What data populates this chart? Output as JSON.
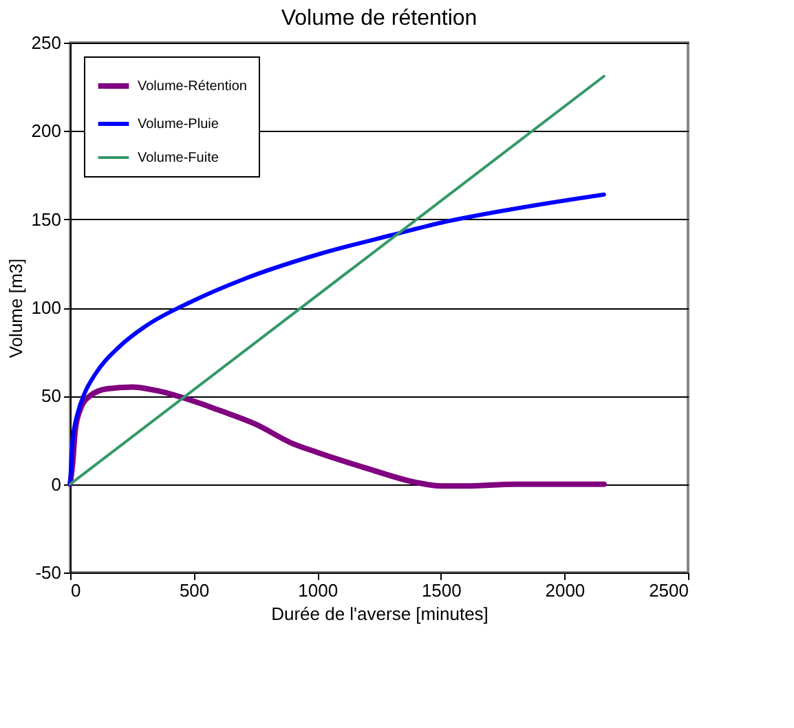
{
  "chart_data": {
    "type": "line",
    "title": "Volume de rétention",
    "xlabel": "Durée de l'averse [minutes]",
    "ylabel": "Volume [m3]",
    "xlim": [
      0,
      2500
    ],
    "xticks": [
      0,
      500,
      1000,
      1500,
      2000,
      2500
    ],
    "ylim": [
      -50,
      250
    ],
    "yticks": [
      -50,
      0,
      50,
      100,
      150,
      200,
      250
    ],
    "grid": "y",
    "legend": "top left",
    "line_style": "solid",
    "marker": "none",
    "series": [
      {
        "name": "Volume-Rétention",
        "color": "#800080",
        "x": [
          0,
          10,
          20,
          40,
          80,
          150,
          250,
          350,
          500,
          600,
          750,
          900,
          1000,
          1200,
          1400,
          1500,
          1600,
          1800,
          2160
        ],
        "values": [
          0,
          12,
          30,
          42,
          50,
          54,
          55,
          53,
          47,
          42,
          34,
          23,
          18,
          9,
          1,
          -1,
          -1,
          0,
          0
        ]
      },
      {
        "name": "Volume-Pluie",
        "color": "#0000ff",
        "x": [
          0,
          10,
          30,
          60,
          100,
          200,
          300,
          500,
          700,
          1000,
          1300,
          1500,
          1800,
          2160
        ],
        "values": [
          0,
          25,
          40,
          52,
          62,
          78,
          89,
          104,
          116,
          130,
          141,
          148,
          156,
          164
        ]
      },
      {
        "name": "Volume-Fuite",
        "color": "#339966",
        "x": [
          0,
          2160
        ],
        "values": [
          0,
          231
        ]
      }
    ]
  }
}
